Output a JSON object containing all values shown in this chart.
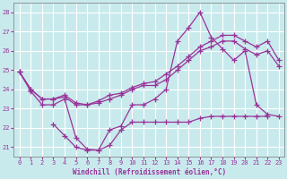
{
  "x": [
    0,
    1,
    2,
    3,
    4,
    5,
    6,
    7,
    8,
    9,
    10,
    11,
    12,
    13,
    14,
    15,
    16,
    17,
    18,
    19,
    20,
    21,
    22,
    23
  ],
  "series": [
    {
      "name": "bottom_curve",
      "y": [
        null,
        null,
        null,
        22.2,
        21.6,
        21.0,
        20.85,
        20.85,
        21.1,
        21.9,
        22.3,
        22.3,
        22.3,
        22.3,
        22.3,
        22.3,
        22.5,
        22.6,
        22.6,
        22.6,
        22.6,
        22.6,
        22.6,
        null
      ]
    },
    {
      "name": "main_curve",
      "y": [
        24.9,
        23.9,
        23.2,
        23.2,
        23.5,
        21.5,
        20.9,
        20.85,
        21.9,
        22.1,
        23.2,
        23.2,
        23.5,
        24.0,
        26.5,
        27.2,
        28.0,
        26.7,
        26.1,
        25.5,
        26.0,
        23.2,
        22.7,
        22.6
      ]
    },
    {
      "name": "upper_smooth1",
      "y": [
        24.9,
        24.0,
        23.5,
        23.5,
        23.6,
        23.2,
        23.2,
        23.3,
        23.5,
        23.7,
        24.0,
        24.2,
        24.2,
        24.5,
        25.0,
        25.5,
        26.0,
        26.2,
        26.5,
        26.5,
        26.1,
        25.8,
        26.0,
        25.2
      ]
    },
    {
      "name": "upper_smooth2",
      "y": [
        24.9,
        24.0,
        23.5,
        23.5,
        23.7,
        23.3,
        23.2,
        23.4,
        23.7,
        23.8,
        24.1,
        24.3,
        24.4,
        24.8,
        25.2,
        25.7,
        26.2,
        26.5,
        26.8,
        26.8,
        26.5,
        26.2,
        26.5,
        25.5
      ]
    }
  ],
  "color": "#993399",
  "bg_color": "#c8eaed",
  "grid_color": "#ffffff",
  "xlabel": "Windchill (Refroidissement éolien,°C)",
  "ylim": [
    20.5,
    28.5
  ],
  "xlim": [
    -0.5,
    23.5
  ],
  "yticks": [
    21,
    22,
    23,
    24,
    25,
    26,
    27,
    28
  ],
  "xticks": [
    0,
    1,
    2,
    3,
    4,
    5,
    6,
    7,
    8,
    9,
    10,
    11,
    12,
    13,
    14,
    15,
    16,
    17,
    18,
    19,
    20,
    21,
    22,
    23
  ],
  "figsize": [
    3.2,
    2.0
  ],
  "dpi": 100
}
